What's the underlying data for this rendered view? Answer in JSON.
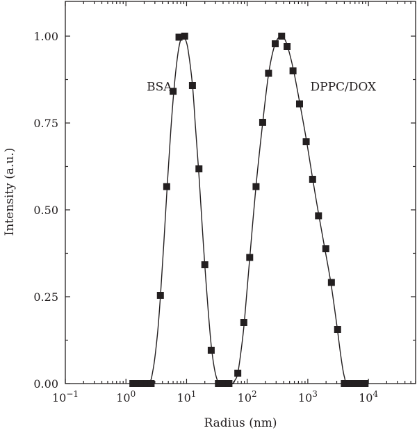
{
  "chart_data": {
    "type": "scatter",
    "xscale": "log",
    "xlabel": "Radius (nm)",
    "ylabel": "Intensity (a.u.)",
    "xlim": [
      0.1,
      60000
    ],
    "ylim": [
      0,
      1.1
    ],
    "grid": false,
    "x_ticks": [
      {
        "value": 0.1,
        "base": "10",
        "exp": "−1"
      },
      {
        "value": 1,
        "base": "10",
        "exp": "0"
      },
      {
        "value": 10,
        "base": "10",
        "exp": "1"
      },
      {
        "value": 100,
        "base": "10",
        "exp": "2"
      },
      {
        "value": 1000,
        "base": "10",
        "exp": "3"
      },
      {
        "value": 10000,
        "base": "10",
        "exp": "4"
      }
    ],
    "y_ticks": [
      {
        "value": 0.0,
        "label": "0.00"
      },
      {
        "value": 0.25,
        "label": "0.25"
      },
      {
        "value": 0.5,
        "label": "0.50"
      },
      {
        "value": 0.75,
        "label": "0.75"
      },
      {
        "value": 1.0,
        "label": "1.00"
      }
    ],
    "annotations": [
      {
        "text": "BSA",
        "x": 2.2,
        "y": 0.855
      },
      {
        "text": "DPPC/DOX",
        "x": 1100,
        "y": 0.855
      }
    ],
    "series": [
      {
        "points": [
          [
            1.3,
            0
          ],
          [
            1.55,
            0
          ],
          [
            1.85,
            0
          ],
          [
            2.2,
            0
          ],
          [
            2.6,
            0
          ],
          [
            3.7,
            0.254
          ],
          [
            4.7,
            0.567
          ],
          [
            6.0,
            0.841
          ],
          [
            7.5,
            0.997
          ],
          [
            9.3,
            1.0
          ],
          [
            12.5,
            0.858
          ],
          [
            16.0,
            0.618
          ],
          [
            20.0,
            0.342
          ],
          [
            25.5,
            0.096
          ],
          [
            33.5,
            0
          ],
          [
            40.0,
            0
          ],
          [
            50.0,
            0
          ]
        ],
        "curve": [
          [
            1.2,
            0
          ],
          [
            2.3,
            0
          ],
          [
            2.8,
            0.04
          ],
          [
            3.3,
            0.14
          ],
          [
            3.7,
            0.25
          ],
          [
            4.2,
            0.4
          ],
          [
            4.8,
            0.57
          ],
          [
            5.5,
            0.73
          ],
          [
            6.3,
            0.86
          ],
          [
            7.2,
            0.95
          ],
          [
            8.0,
            0.99
          ],
          [
            8.8,
            1.0
          ],
          [
            9.6,
            0.99
          ],
          [
            10.6,
            0.96
          ],
          [
            12.5,
            0.86
          ],
          [
            14.0,
            0.74
          ],
          [
            16.0,
            0.6
          ],
          [
            18.0,
            0.46
          ],
          [
            20.0,
            0.34
          ],
          [
            22.5,
            0.22
          ],
          [
            25.5,
            0.11
          ],
          [
            29.0,
            0.04
          ],
          [
            33.0,
            0.005
          ],
          [
            37.0,
            0
          ],
          [
            60.0,
            0
          ]
        ]
      },
      {
        "points": [
          [
            70.0,
            0.03
          ],
          [
            88.0,
            0.176
          ],
          [
            110.0,
            0.363
          ],
          [
            140.0,
            0.567
          ],
          [
            180.0,
            0.752
          ],
          [
            225.0,
            0.893
          ],
          [
            290.0,
            0.978
          ],
          [
            370.0,
            1.0
          ],
          [
            455.0,
            0.97
          ],
          [
            570.0,
            0.9
          ],
          [
            730.0,
            0.805
          ],
          [
            940.0,
            0.696
          ],
          [
            1200.0,
            0.588
          ],
          [
            1500.0,
            0.483
          ],
          [
            1980.0,
            0.388
          ],
          [
            2450.0,
            0.291
          ],
          [
            3100.0,
            0.156
          ],
          [
            4000.0,
            0
          ],
          [
            5000.0,
            0
          ],
          [
            6000.0,
            0
          ],
          [
            7300.0,
            0
          ],
          [
            8800.0,
            0
          ]
        ],
        "curve": [
          [
            30.0,
            0
          ],
          [
            55.0,
            0
          ],
          [
            63.0,
            0.01
          ],
          [
            70.0,
            0.03
          ],
          [
            80.0,
            0.1
          ],
          [
            90.0,
            0.18
          ],
          [
            110.0,
            0.36
          ],
          [
            140.0,
            0.57
          ],
          [
            180.0,
            0.75
          ],
          [
            225.0,
            0.89
          ],
          [
            280.0,
            0.97
          ],
          [
            350.0,
            1.0
          ],
          [
            420.0,
            0.99
          ],
          [
            500.0,
            0.95
          ],
          [
            600.0,
            0.89
          ],
          [
            750.0,
            0.8
          ],
          [
            950.0,
            0.7
          ],
          [
            1200.0,
            0.59
          ],
          [
            1500.0,
            0.49
          ],
          [
            1900.0,
            0.39
          ],
          [
            2400.0,
            0.29
          ],
          [
            3000.0,
            0.17
          ],
          [
            3500.0,
            0.08
          ],
          [
            4000.0,
            0.02
          ],
          [
            4700.0,
            0
          ],
          [
            10000.0,
            0
          ]
        ]
      }
    ]
  }
}
